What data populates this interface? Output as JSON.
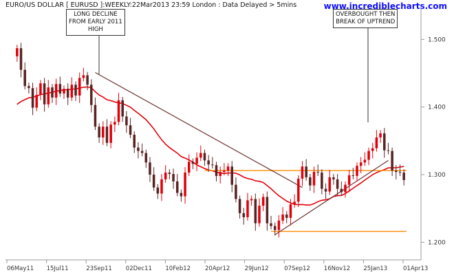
{
  "header": {
    "title": "EURO/US DOLLAR [ EURUSD ]:WEEKLY:22Mar2013 23:59 London : Data Delayed > 5mins",
    "watermark": "www.incrediblecharts.com"
  },
  "colors": {
    "bull_candle": "#e0000a",
    "bear_candle": "#5a2323",
    "moving_average": "#e0000a",
    "trendline": "#6b3030",
    "support_resistance": "#ff8c00",
    "axis": "#999999",
    "watermark": "#1010ff"
  },
  "chart_data": {
    "type": "candlestick",
    "instrument": "EURUSD",
    "timeframe": "weekly",
    "x_tick_labels": [
      "06May11",
      "15Jul11",
      "23Sep11",
      "02Dec11",
      "10Feb12",
      "20Apr12",
      "29Jun12",
      "07Sep12",
      "16Nov12",
      "25Jan13",
      "01Apr13"
    ],
    "y_tick_labels": [
      "1.500",
      "1.400",
      "1.300",
      "1.200"
    ],
    "y_ticks": [
      1.5,
      1.4,
      1.3,
      1.2
    ],
    "ylim": [
      1.18,
      1.54
    ],
    "grid": false,
    "closes": [
      1.487,
      1.455,
      1.431,
      1.428,
      1.399,
      1.418,
      1.435,
      1.404,
      1.429,
      1.414,
      1.434,
      1.42,
      1.427,
      1.414,
      1.433,
      1.417,
      1.443,
      1.447,
      1.433,
      1.403,
      1.371,
      1.355,
      1.371,
      1.347,
      1.374,
      1.378,
      1.41,
      1.386,
      1.373,
      1.359,
      1.34,
      1.335,
      1.332,
      1.318,
      1.3,
      1.281,
      1.272,
      1.293,
      1.303,
      1.301,
      1.29,
      1.273,
      1.268,
      1.303,
      1.319,
      1.316,
      1.325,
      1.332,
      1.321,
      1.315,
      1.314,
      1.298,
      1.304,
      1.306,
      1.312,
      1.285,
      1.264,
      1.243,
      1.237,
      1.262,
      1.264,
      1.228,
      1.254,
      1.267,
      1.228,
      1.224,
      1.218,
      1.232,
      1.241,
      1.236,
      1.256,
      1.26,
      1.294,
      1.312,
      1.296,
      1.284,
      1.304,
      1.303,
      1.279,
      1.275,
      1.296,
      1.293,
      1.279,
      1.274,
      1.285,
      1.299,
      1.298,
      1.313,
      1.318,
      1.322,
      1.335,
      1.339,
      1.355,
      1.361,
      1.336,
      1.335,
      1.306,
      1.304,
      1.303,
      1.292
    ],
    "ma_label": "",
    "resistance": 1.306,
    "support": 1.216,
    "downtrend_line": {
      "from": {
        "index": 20,
        "price": 1.451
      },
      "to": {
        "index": 73,
        "price": 1.281
      }
    },
    "uptrend_line": {
      "from": {
        "index": 66,
        "price": 1.211
      },
      "to": {
        "index": 95,
        "price": 1.321
      }
    },
    "annotations": [
      {
        "text": "LONG DECLINE\nFROM EARLY 2011\nHIGH"
      },
      {
        "text": "OVERBOUGHT THEN\nBREAK OF UPTREND"
      }
    ]
  }
}
